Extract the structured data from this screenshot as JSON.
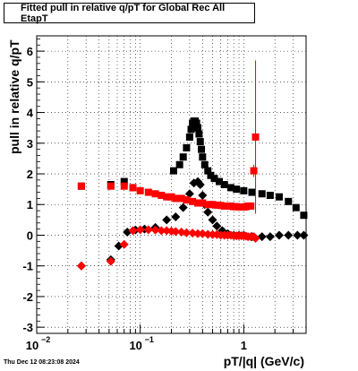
{
  "chart_data": {
    "type": "scatter",
    "title": "Fitted pull in relative q/pT for Global Rec All EtapT",
    "xlabel": "pT/|q| (GeV/c)",
    "ylabel": "pull in relative q/pT",
    "xscale": "log",
    "xlim": [
      0.01,
      4.0
    ],
    "ylim": [
      -3.2,
      6.5
    ],
    "grid": true,
    "y_ticks": [
      -3,
      -2,
      -1,
      0,
      1,
      2,
      3,
      4,
      5,
      6
    ],
    "x_tick_labels": [
      {
        "base": "10",
        "exp": "−2",
        "value": 0.01
      },
      {
        "base": "10",
        "exp": "−1",
        "value": 0.1
      },
      {
        "base": "1",
        "exp": "",
        "value": 1
      }
    ],
    "series": [
      {
        "color": "#000000",
        "marker": "square",
        "x": [
          0.027,
          0.052,
          0.07,
          0.085,
          0.21,
          0.24,
          0.26,
          0.28,
          0.3,
          0.31,
          0.32,
          0.33,
          0.34,
          0.35,
          0.36,
          0.37,
          0.38,
          0.39,
          0.4,
          0.42,
          0.45,
          0.48,
          0.52,
          0.58,
          0.65,
          0.75,
          0.85,
          1.0,
          1.2,
          1.5,
          1.8,
          2.2,
          2.7,
          3.2,
          3.8
        ],
        "y": [
          1.6,
          1.65,
          1.75,
          1.55,
          2.1,
          2.3,
          2.55,
          2.85,
          3.2,
          3.45,
          3.65,
          3.72,
          3.72,
          3.65,
          3.5,
          3.3,
          3.05,
          2.8,
          2.55,
          2.3,
          2.1,
          1.95,
          1.85,
          1.75,
          1.65,
          1.55,
          1.5,
          1.45,
          1.4,
          1.35,
          1.3,
          1.25,
          1.1,
          0.9,
          0.65
        ]
      },
      {
        "color": "#000000",
        "marker": "diamond",
        "x": [
          0.027,
          0.052,
          0.062,
          0.075,
          0.09,
          0.11,
          0.14,
          0.18,
          0.22,
          0.26,
          0.3,
          0.33,
          0.36,
          0.38,
          0.4,
          0.42,
          0.45,
          0.5,
          0.55,
          0.62,
          0.7,
          0.8,
          0.9,
          1.0,
          1.2,
          1.5,
          1.8,
          2.2,
          2.7,
          3.3,
          3.8
        ],
        "y": [
          -1.0,
          -0.8,
          -0.35,
          0.1,
          0.17,
          0.2,
          0.25,
          0.5,
          0.6,
          0.9,
          1.35,
          1.7,
          1.75,
          1.65,
          1.3,
          1.0,
          0.75,
          0.5,
          0.3,
          0.15,
          0.05,
          0.0,
          0.0,
          0.0,
          -0.05,
          -0.05,
          -0.05,
          0.0,
          0.0,
          0.0,
          0.0
        ]
      },
      {
        "color": "#ff0000",
        "marker": "square",
        "x": [
          0.027,
          0.052,
          0.07,
          0.085,
          0.1,
          0.12,
          0.14,
          0.16,
          0.18,
          0.2,
          0.22,
          0.25,
          0.28,
          0.32,
          0.36,
          0.4,
          0.45,
          0.5,
          0.55,
          0.6,
          0.65,
          0.7,
          0.75,
          0.8,
          0.85,
          0.9,
          0.95,
          1.0,
          1.05,
          1.1,
          1.17,
          1.25,
          1.3
        ],
        "y": [
          1.6,
          1.6,
          1.6,
          1.55,
          1.45,
          1.4,
          1.35,
          1.3,
          1.25,
          1.25,
          1.2,
          1.2,
          1.15,
          1.1,
          1.05,
          1.05,
          1.0,
          1.0,
          0.98,
          0.97,
          0.95,
          0.95,
          0.95,
          0.93,
          0.93,
          0.92,
          0.92,
          0.92,
          0.93,
          0.95,
          0.95,
          2.1,
          3.2
        ],
        "errors": [
          0.05,
          0.05,
          0.05,
          0.05,
          0.05,
          0.05,
          0.05,
          0.05,
          0.05,
          0.05,
          0.05,
          0.05,
          0.05,
          0.05,
          0.05,
          0.05,
          0.05,
          0.05,
          0.05,
          0.05,
          0.05,
          0.05,
          0.05,
          0.05,
          0.05,
          0.05,
          0.05,
          0.05,
          0.05,
          0.05,
          0.05,
          0.2,
          2.5
        ]
      },
      {
        "color": "#ff0000",
        "marker": "diamond",
        "x": [
          0.027,
          0.052,
          0.07,
          0.085,
          0.1,
          0.12,
          0.14,
          0.16,
          0.18,
          0.2,
          0.22,
          0.25,
          0.28,
          0.32,
          0.36,
          0.4,
          0.45,
          0.5,
          0.55,
          0.6,
          0.65,
          0.7,
          0.75,
          0.8,
          0.85,
          0.9,
          0.95,
          1.0,
          1.05,
          1.1,
          1.17,
          1.25,
          1.3
        ],
        "y": [
          -1.0,
          -0.85,
          -0.3,
          0.15,
          0.18,
          0.18,
          0.17,
          0.15,
          0.15,
          0.13,
          0.12,
          0.1,
          0.08,
          0.07,
          0.05,
          0.05,
          0.03,
          0.02,
          0.02,
          0.0,
          0.0,
          0.0,
          0.0,
          -0.02,
          -0.02,
          -0.02,
          -0.02,
          -0.02,
          -0.03,
          -0.05,
          -0.05,
          -0.05,
          -0.1
        ]
      }
    ]
  },
  "timestamp": "Thu Dec 12 08:23:08 2024"
}
